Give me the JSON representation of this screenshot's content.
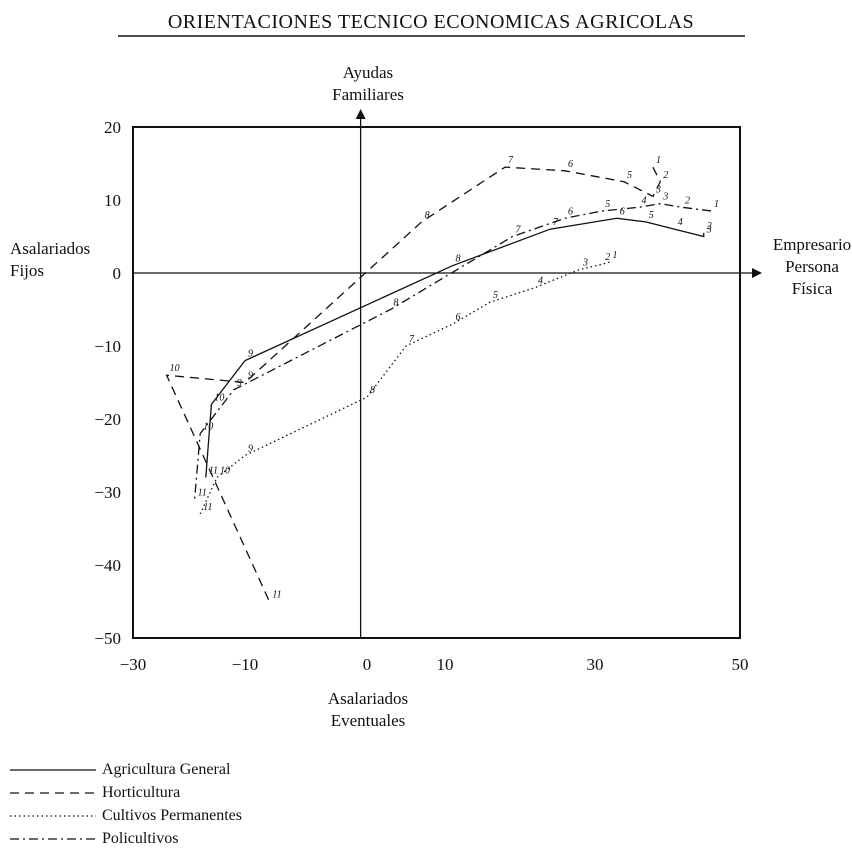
{
  "chart_data": {
    "type": "line",
    "title": "ORIENTACIONES TECNICO ECONOMICAS AGRICOLAS",
    "axis_labels": {
      "top": [
        "Ayudas",
        "Familiares"
      ],
      "bottom": [
        "Asalariados",
        "Eventuales"
      ],
      "left": [
        "Asalariados",
        "Fijos"
      ],
      "right": [
        "Empresario",
        "Persona",
        "Física"
      ]
    },
    "x_ticks": [
      "−30",
      "−10",
      "0",
      "10",
      "30",
      "50"
    ],
    "y_ticks": [
      "20",
      "10",
      "0",
      "−10",
      "−20",
      "−30",
      "−40",
      "−50"
    ],
    "xlim": [
      -30,
      50
    ],
    "ylim": [
      -50,
      20
    ],
    "grid": false,
    "legend_position": "bottom-left",
    "series": [
      {
        "name": "Agricultura General",
        "dash": "solid",
        "points": [
          {
            "x": 45,
            "y": 5.5,
            "label": "2"
          },
          {
            "x": 45,
            "y": 5,
            "label": "3"
          },
          {
            "x": 41,
            "y": 6,
            "label": "4"
          },
          {
            "x": 37,
            "y": 7,
            "label": "5"
          },
          {
            "x": 33,
            "y": 7.5,
            "label": "6"
          },
          {
            "x": 24,
            "y": 6,
            "label": "7"
          },
          {
            "x": 11,
            "y": 1,
            "label": "8"
          },
          {
            "x": -10,
            "y": -12,
            "label": "9"
          },
          {
            "x": -16,
            "y": -18,
            "label": "10"
          },
          {
            "x": -17,
            "y": -28,
            "label": "11"
          }
        ]
      },
      {
        "name": "Horticultura",
        "dash": "dashed",
        "points": [
          {
            "x": 38,
            "y": 14.5,
            "label": "1"
          },
          {
            "x": 39,
            "y": 12.5,
            "label": "2"
          },
          {
            "x": 38,
            "y": 10.5,
            "label": "3"
          },
          {
            "x": 34,
            "y": 12.5,
            "label": "5"
          },
          {
            "x": 26,
            "y": 14,
            "label": "6"
          },
          {
            "x": 18,
            "y": 14.5,
            "label": "7"
          },
          {
            "x": 7,
            "y": 7,
            "label": "8"
          },
          {
            "x": -10,
            "y": -15,
            "label": "9"
          },
          {
            "x": -24,
            "y": -14,
            "label": "10"
          },
          {
            "x": -8,
            "y": -45,
            "label": "11"
          }
        ]
      },
      {
        "name": "Cultivos Permanentes",
        "dash": "dotted",
        "points": [
          {
            "x": 32,
            "y": 1.5,
            "label": "1"
          },
          {
            "x": 31,
            "y": 1.2,
            "label": "2"
          },
          {
            "x": 28,
            "y": 0.5,
            "label": "3"
          },
          {
            "x": 22,
            "y": -2,
            "label": "4"
          },
          {
            "x": 16,
            "y": -4,
            "label": "5"
          },
          {
            "x": 11,
            "y": -7,
            "label": "6"
          },
          {
            "x": 5,
            "y": -10,
            "label": "7"
          },
          {
            "x": 0,
            "y": -17,
            "label": "8"
          },
          {
            "x": -10,
            "y": -25,
            "label": "9"
          },
          {
            "x": -15,
            "y": -28,
            "label": "10"
          },
          {
            "x": -18,
            "y": -33,
            "label": "11"
          }
        ]
      },
      {
        "name": "Policultivos",
        "dash": "dashdot",
        "points": [
          {
            "x": 46,
            "y": 8.5,
            "label": "1"
          },
          {
            "x": 42,
            "y": 9,
            "label": "2"
          },
          {
            "x": 39,
            "y": 9.5,
            "label": "3"
          },
          {
            "x": 36,
            "y": 9,
            "label": "4"
          },
          {
            "x": 31,
            "y": 8.5,
            "label": "5"
          },
          {
            "x": 26,
            "y": 7.5,
            "label": "6"
          },
          {
            "x": 19,
            "y": 5,
            "label": "7"
          },
          {
            "x": 3,
            "y": -5,
            "label": "8"
          },
          {
            "x": -12,
            "y": -16,
            "label": "9"
          },
          {
            "x": -18,
            "y": -22,
            "label": "10"
          },
          {
            "x": -19,
            "y": -31,
            "label": "11"
          }
        ]
      }
    ]
  }
}
